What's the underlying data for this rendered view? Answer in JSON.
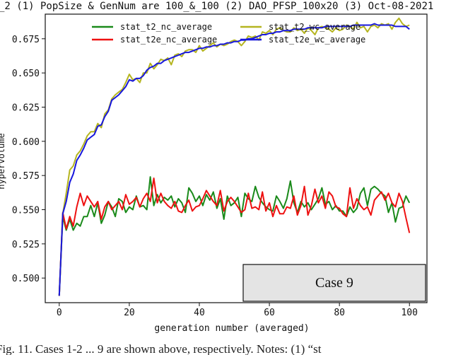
{
  "chart_data": {
    "type": "line",
    "title": "_2 (1) PopSize & GenNum are 100_&_100 (2) DAO_PFSP_100x20 (3) Oct-08-2021",
    "xlabel": "generation number (averaged)",
    "ylabel": "hypervolume",
    "xlim": [
      -4,
      105
    ],
    "ylim": [
      0.482,
      0.693
    ],
    "xticks": [
      0,
      20,
      40,
      60,
      80,
      100
    ],
    "xtick_labels": [
      "0",
      "20",
      "40",
      "60",
      "80",
      "100"
    ],
    "yticks": [
      0.5,
      0.525,
      0.55,
      0.575,
      0.6,
      0.625,
      0.65,
      0.675
    ],
    "ytick_labels": [
      "0.500",
      "0.525",
      "0.550",
      "0.575",
      "0.600",
      "0.625",
      "0.650",
      "0.675"
    ],
    "grid": false,
    "legend_position": "top-center, two columns",
    "annotation": "Case 9",
    "caption": "Fig. 11. Cases 1-2 ... 9 are shown above, respectively. Notes: (1) “st",
    "series": [
      {
        "name": "stat_t2_nc_average",
        "color": "#1a8a1a",
        "x": [
          0,
          1,
          2,
          3,
          4,
          5,
          6,
          7,
          8,
          9,
          10,
          11,
          12,
          13,
          14,
          15,
          16,
          17,
          18,
          19,
          20,
          21,
          22,
          23,
          24,
          25,
          26,
          27,
          28,
          29,
          30,
          31,
          32,
          33,
          34,
          35,
          36,
          37,
          38,
          39,
          40,
          41,
          42,
          43,
          44,
          45,
          46,
          47,
          48,
          49,
          50,
          51,
          52,
          53,
          54,
          55,
          56,
          57,
          58,
          59,
          60,
          61,
          62,
          63,
          64,
          65,
          66,
          67,
          68,
          69,
          70,
          71,
          72,
          73,
          74,
          75,
          76,
          77,
          78,
          79,
          80,
          81,
          82,
          83,
          84,
          85,
          86,
          87,
          88,
          89,
          90,
          91,
          92,
          93,
          94,
          95,
          96,
          97,
          98,
          99,
          100
        ],
        "y": [
          0.487,
          0.545,
          0.535,
          0.543,
          0.535,
          0.54,
          0.538,
          0.545,
          0.545,
          0.553,
          0.545,
          0.555,
          0.54,
          0.546,
          0.556,
          0.552,
          0.545,
          0.558,
          0.556,
          0.548,
          0.552,
          0.55,
          0.56,
          0.552,
          0.553,
          0.55,
          0.574,
          0.553,
          0.561,
          0.555,
          0.559,
          0.557,
          0.56,
          0.552,
          0.558,
          0.555,
          0.548,
          0.566,
          0.562,
          0.556,
          0.56,
          0.553,
          0.561,
          0.557,
          0.563,
          0.551,
          0.558,
          0.543,
          0.56,
          0.553,
          0.555,
          0.559,
          0.545,
          0.562,
          0.558,
          0.556,
          0.567,
          0.559,
          0.555,
          0.552,
          0.55,
          0.549,
          0.56,
          0.556,
          0.551,
          0.558,
          0.571,
          0.555,
          0.548,
          0.556,
          0.552,
          0.555,
          0.55,
          0.554,
          0.558,
          0.566,
          0.554,
          0.556,
          0.55,
          0.553,
          0.549,
          0.549,
          0.545,
          0.552,
          0.548,
          0.551,
          0.562,
          0.566,
          0.553,
          0.565,
          0.567,
          0.565,
          0.562,
          0.56,
          0.548,
          0.555,
          0.541,
          0.551,
          0.552,
          0.56,
          0.555
        ]
      },
      {
        "name": "stat_t2e_nc_average",
        "color": "#ee1111",
        "x": [
          0,
          1,
          2,
          3,
          4,
          5,
          6,
          7,
          8,
          9,
          10,
          11,
          12,
          13,
          14,
          15,
          16,
          17,
          18,
          19,
          20,
          21,
          22,
          23,
          24,
          25,
          26,
          27,
          28,
          29,
          30,
          31,
          32,
          33,
          34,
          35,
          36,
          37,
          38,
          39,
          40,
          41,
          42,
          43,
          44,
          45,
          46,
          47,
          48,
          49,
          50,
          51,
          52,
          53,
          54,
          55,
          56,
          57,
          58,
          59,
          60,
          61,
          62,
          63,
          64,
          65,
          66,
          67,
          68,
          69,
          70,
          71,
          72,
          73,
          74,
          75,
          76,
          77,
          78,
          79,
          80,
          81,
          82,
          83,
          84,
          85,
          86,
          87,
          88,
          89,
          90,
          91,
          92,
          93,
          94,
          95,
          96,
          97,
          98,
          99,
          100
        ],
        "y": [
          0.487,
          0.548,
          0.536,
          0.545,
          0.538,
          0.552,
          0.562,
          0.553,
          0.56,
          0.556,
          0.552,
          0.556,
          0.543,
          0.552,
          0.556,
          0.55,
          0.553,
          0.556,
          0.55,
          0.561,
          0.554,
          0.556,
          0.559,
          0.552,
          0.558,
          0.562,
          0.556,
          0.573,
          0.555,
          0.562,
          0.556,
          0.553,
          0.551,
          0.556,
          0.549,
          0.548,
          0.553,
          0.557,
          0.549,
          0.552,
          0.553,
          0.558,
          0.564,
          0.56,
          0.556,
          0.553,
          0.564,
          0.549,
          0.556,
          0.559,
          0.556,
          0.552,
          0.548,
          0.55,
          0.562,
          0.551,
          0.552,
          0.55,
          0.563,
          0.549,
          0.555,
          0.545,
          0.553,
          0.547,
          0.547,
          0.552,
          0.551,
          0.56,
          0.546,
          0.553,
          0.567,
          0.546,
          0.553,
          0.565,
          0.555,
          0.56,
          0.551,
          0.563,
          0.56,
          0.552,
          0.551,
          0.547,
          0.545,
          0.566,
          0.551,
          0.558,
          0.553,
          0.55,
          0.552,
          0.546,
          0.557,
          0.56,
          0.563,
          0.557,
          0.562,
          0.555,
          0.552,
          0.562,
          0.556,
          0.544,
          0.533
        ]
      },
      {
        "name": "stat_t2_wc_average",
        "color": "#b5b520",
        "x": [
          0,
          1,
          2,
          3,
          4,
          5,
          6,
          7,
          8,
          9,
          10,
          11,
          12,
          13,
          14,
          15,
          16,
          17,
          18,
          19,
          20,
          21,
          22,
          23,
          24,
          25,
          26,
          27,
          28,
          29,
          30,
          31,
          32,
          33,
          34,
          35,
          36,
          37,
          38,
          39,
          40,
          41,
          42,
          43,
          44,
          45,
          46,
          47,
          48,
          49,
          50,
          51,
          52,
          53,
          54,
          55,
          56,
          57,
          58,
          59,
          60,
          61,
          62,
          63,
          64,
          65,
          66,
          67,
          68,
          69,
          70,
          71,
          72,
          73,
          74,
          75,
          76,
          77,
          78,
          79,
          80,
          81,
          82,
          83,
          84,
          85,
          86,
          87,
          88,
          89,
          90,
          91,
          92,
          93,
          94,
          95,
          96,
          97,
          98,
          99,
          100
        ],
        "y": [
          0.487,
          0.547,
          0.562,
          0.579,
          0.582,
          0.59,
          0.593,
          0.598,
          0.604,
          0.607,
          0.607,
          0.613,
          0.61,
          0.62,
          0.623,
          0.631,
          0.634,
          0.636,
          0.638,
          0.643,
          0.649,
          0.645,
          0.646,
          0.643,
          0.65,
          0.65,
          0.657,
          0.653,
          0.656,
          0.66,
          0.659,
          0.661,
          0.656,
          0.663,
          0.664,
          0.662,
          0.666,
          0.667,
          0.667,
          0.665,
          0.67,
          0.666,
          0.668,
          0.67,
          0.672,
          0.669,
          0.671,
          0.67,
          0.671,
          0.673,
          0.674,
          0.673,
          0.67,
          0.673,
          0.677,
          0.676,
          0.677,
          0.674,
          0.68,
          0.679,
          0.681,
          0.678,
          0.682,
          0.683,
          0.681,
          0.68,
          0.68,
          0.683,
          0.681,
          0.682,
          0.679,
          0.683,
          0.681,
          0.678,
          0.683,
          0.684,
          0.683,
          0.682,
          0.68,
          0.683,
          0.681,
          0.682,
          0.685,
          0.684,
          0.682,
          0.687,
          0.683,
          0.684,
          0.68,
          0.684,
          0.685,
          0.683,
          0.686,
          0.685,
          0.686,
          0.682,
          0.687,
          0.69,
          0.686,
          0.684,
          0.685
        ]
      },
      {
        "name": "stat_t2e_wc_average",
        "color": "#1717dd",
        "x": [
          0,
          1,
          2,
          3,
          4,
          5,
          6,
          7,
          8,
          9,
          10,
          11,
          12,
          13,
          14,
          15,
          16,
          17,
          18,
          19,
          20,
          21,
          22,
          23,
          24,
          25,
          26,
          27,
          28,
          29,
          30,
          31,
          32,
          33,
          34,
          35,
          36,
          37,
          38,
          39,
          40,
          41,
          42,
          43,
          44,
          45,
          46,
          47,
          48,
          49,
          50,
          51,
          52,
          53,
          54,
          55,
          56,
          57,
          58,
          59,
          60,
          61,
          62,
          63,
          64,
          65,
          66,
          67,
          68,
          69,
          70,
          71,
          72,
          73,
          74,
          75,
          76,
          77,
          78,
          79,
          80,
          81,
          82,
          83,
          84,
          85,
          86,
          87,
          88,
          89,
          90,
          91,
          92,
          93,
          94,
          95,
          96,
          97,
          98,
          99,
          100
        ],
        "y": [
          0.487,
          0.547,
          0.556,
          0.57,
          0.576,
          0.586,
          0.59,
          0.595,
          0.601,
          0.603,
          0.605,
          0.611,
          0.612,
          0.618,
          0.622,
          0.63,
          0.632,
          0.634,
          0.637,
          0.64,
          0.645,
          0.644,
          0.646,
          0.646,
          0.648,
          0.652,
          0.654,
          0.655,
          0.657,
          0.657,
          0.659,
          0.66,
          0.661,
          0.662,
          0.663,
          0.664,
          0.665,
          0.665,
          0.666,
          0.667,
          0.668,
          0.668,
          0.669,
          0.669,
          0.67,
          0.67,
          0.671,
          0.671,
          0.672,
          0.672,
          0.673,
          0.673,
          0.674,
          0.674,
          0.675,
          0.675,
          0.676,
          0.677,
          0.678,
          0.678,
          0.679,
          0.679,
          0.68,
          0.68,
          0.681,
          0.681,
          0.681,
          0.682,
          0.682,
          0.682,
          0.682,
          0.683,
          0.683,
          0.683,
          0.683,
          0.683,
          0.684,
          0.684,
          0.684,
          0.684,
          0.684,
          0.684,
          0.684,
          0.684,
          0.685,
          0.685,
          0.685,
          0.685,
          0.685,
          0.685,
          0.686,
          0.685,
          0.685,
          0.685,
          0.685,
          0.685,
          0.684,
          0.684,
          0.684,
          0.684,
          0.682
        ]
      }
    ]
  }
}
